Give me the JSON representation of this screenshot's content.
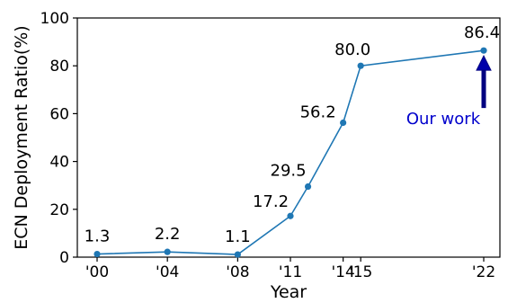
{
  "chart_data": {
    "type": "line",
    "xlabel": "Year",
    "ylabel": "ECN Deployment Ratio(%)",
    "ylim": [
      0,
      100
    ],
    "y_ticks": [
      0,
      20,
      40,
      60,
      80,
      100
    ],
    "grid": false,
    "legend": "none",
    "x": [
      2000,
      2004,
      2008,
      2011,
      2012,
      2014,
      2015,
      2022
    ],
    "x_ticks": [
      {
        "value": 2000,
        "label": "'00"
      },
      {
        "value": 2004,
        "label": "'04"
      },
      {
        "value": 2008,
        "label": "'08"
      },
      {
        "value": 2011,
        "label": "'11"
      },
      {
        "value": 2014,
        "label": "'14"
      },
      {
        "value": 2015,
        "label": "'15"
      },
      {
        "value": 2022,
        "label": "'22"
      }
    ],
    "series": [
      {
        "values": [
          1.3,
          2.2,
          1.1,
          17.2,
          29.5,
          56.2,
          80.0,
          86.4
        ],
        "data_labels": [
          "1.3",
          "2.2",
          "1.1",
          "17.2",
          "29.5",
          "56.2",
          "80.0",
          "86.4"
        ],
        "color": "#1f77b4"
      }
    ],
    "annotation": {
      "text": "Our work",
      "x": 2022,
      "y": 86.4,
      "color": "#0000cc"
    }
  }
}
